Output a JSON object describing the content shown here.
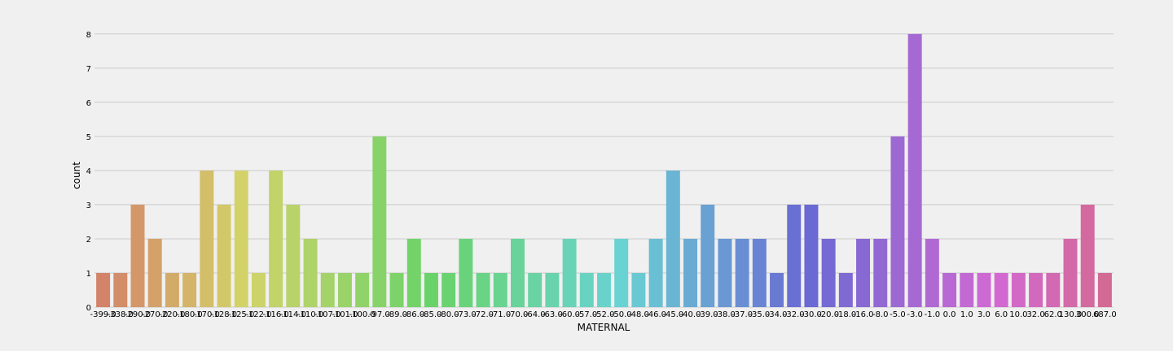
{
  "chart_data": {
    "type": "bar",
    "xlabel": "MATERNAL",
    "ylabel": "count",
    "ylim": [
      0,
      8.4
    ],
    "yticks": [
      0,
      1,
      2,
      3,
      4,
      5,
      6,
      7,
      8
    ],
    "grid": "horizontal",
    "categories": [
      "-399.0",
      "-338.0",
      "-290.0",
      "-270.0",
      "-220.0",
      "-180.0",
      "-170.0",
      "-128.0",
      "-125.0",
      "-122.0",
      "-116.0",
      "-114.0",
      "-110.0",
      "-107.0",
      "-101.0",
      "-100.0",
      "-97.0",
      "-89.0",
      "-86.0",
      "-85.0",
      "-80.0",
      "-73.0",
      "-72.0",
      "-71.0",
      "-70.0",
      "-64.0",
      "-63.0",
      "-60.0",
      "-57.0",
      "-52.0",
      "-50.0",
      "-48.0",
      "-46.0",
      "-45.0",
      "-40.0",
      "-39.0",
      "-38.0",
      "-37.0",
      "-35.0",
      "-34.0",
      "-32.0",
      "-30.0",
      "-20.0",
      "-18.0",
      "-16.0",
      "-8.0",
      "-5.0",
      "-3.0",
      "-1.0",
      "0.0",
      "1.0",
      "3.0",
      "6.0",
      "10.0",
      "32.0",
      "62.0",
      "130.0",
      "300.0",
      "687.0"
    ],
    "values": [
      1,
      1,
      3,
      2,
      1,
      1,
      4,
      3,
      4,
      1,
      4,
      3,
      2,
      1,
      1,
      1,
      5,
      1,
      2,
      1,
      1,
      2,
      1,
      1,
      2,
      1,
      1,
      2,
      1,
      1,
      2,
      1,
      2,
      4,
      2,
      3,
      2,
      2,
      2,
      1,
      3,
      3,
      2,
      1,
      2,
      2,
      5,
      8,
      2,
      1,
      1,
      1,
      1,
      1,
      1,
      1,
      2,
      3,
      1
    ]
  }
}
